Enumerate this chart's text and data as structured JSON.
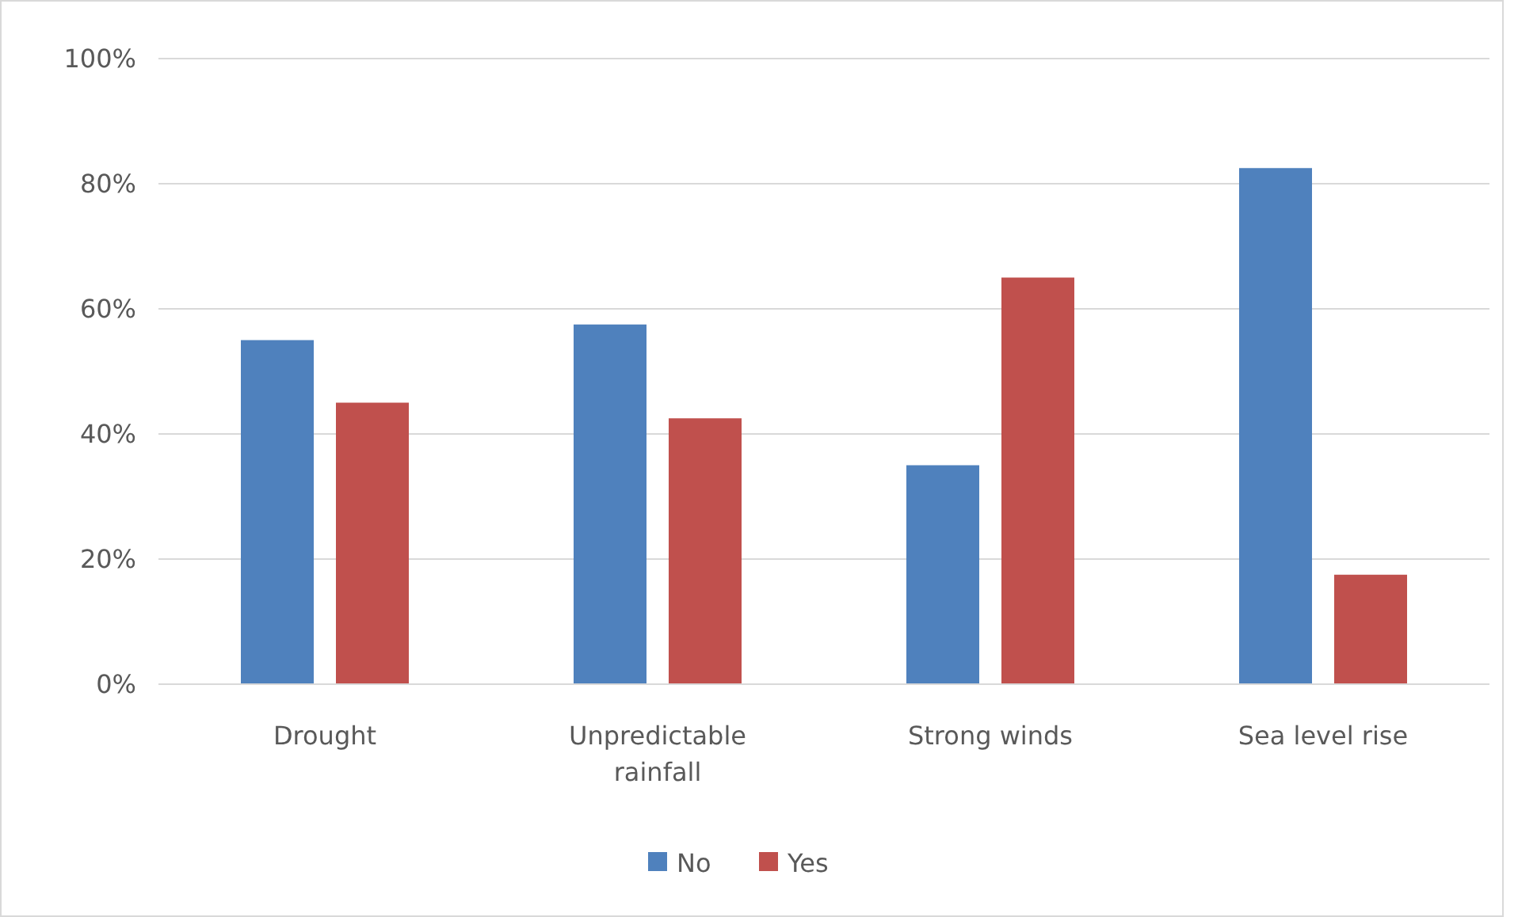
{
  "chart_data": {
    "type": "bar",
    "categories": [
      "Drought",
      "Unpredictable rainfall",
      "Strong winds",
      "Sea level rise"
    ],
    "series": [
      {
        "name": "No",
        "color": "#4f81bd",
        "values": [
          55,
          57.5,
          35,
          82.5
        ]
      },
      {
        "name": "Yes",
        "color": "#c0504d",
        "values": [
          45,
          42.5,
          65,
          17.5
        ]
      }
    ],
    "ylim": [
      0,
      100
    ],
    "yticks": [
      {
        "value": 0,
        "label": "0%"
      },
      {
        "value": 20,
        "label": "20%"
      },
      {
        "value": 40,
        "label": "40%"
      },
      {
        "value": 60,
        "label": "60%"
      },
      {
        "value": 80,
        "label": "80%"
      },
      {
        "value": 100,
        "label": "100%"
      }
    ],
    "grid": "y",
    "legend": "bottom"
  }
}
